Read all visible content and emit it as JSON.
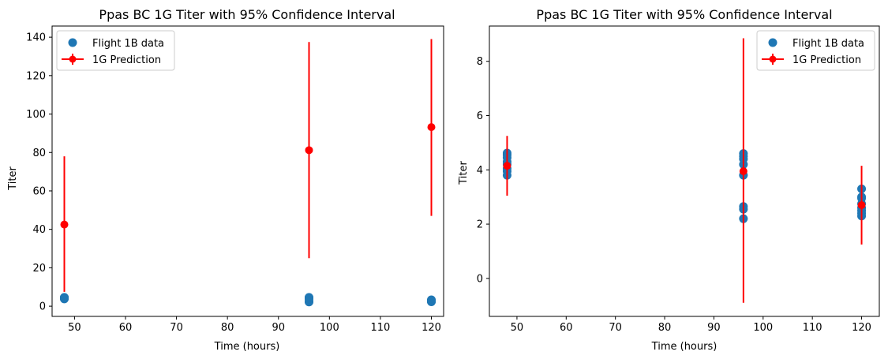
{
  "colors": {
    "data_series": "#1f77b4",
    "prediction_series": "#ff0000",
    "axes": "#000000",
    "background": "#ffffff"
  },
  "chart_data": [
    {
      "type": "scatter",
      "title": "Ppas BC 1G Titer with 95% Confidence Interval",
      "xlabel": "Time (hours)",
      "ylabel": "Titer",
      "xlim": [
        45.6,
        122.4
      ],
      "ylim": [
        -5.3,
        145.8
      ],
      "xticks": [
        50,
        60,
        70,
        80,
        90,
        100,
        110,
        120
      ],
      "yticks": [
        0,
        20,
        40,
        60,
        80,
        100,
        120,
        140
      ],
      "grid": false,
      "legend_position": "top-left",
      "series": [
        {
          "name": "Flight 1B data",
          "kind": "scatter",
          "color": "#1f77b4",
          "x": [
            48,
            48,
            48,
            48,
            48,
            48,
            96,
            96,
            96,
            96,
            96,
            96,
            120,
            120,
            120,
            120,
            120,
            120
          ],
          "y": [
            3.8,
            4.0,
            4.2,
            4.4,
            4.5,
            4.6,
            2.2,
            2.6,
            3.8,
            4.2,
            4.4,
            4.6,
            2.3,
            2.5,
            2.7,
            2.8,
            3.0,
            3.3
          ]
        },
        {
          "name": "1G Prediction",
          "kind": "errorbar",
          "color": "#ff0000",
          "x": [
            48,
            96,
            120
          ],
          "y": [
            42.5,
            81.2,
            93.2
          ],
          "lower": [
            7.5,
            25.0,
            47.0
          ],
          "upper": [
            78.0,
            137.5,
            139.0
          ]
        }
      ]
    },
    {
      "type": "scatter",
      "title": "Ppas BC 1G Titer with 95% Confidence Interval",
      "xlabel": "Time (hours)",
      "ylabel": "Titer",
      "xlim": [
        44.4,
        123.6
      ],
      "ylim": [
        -1.4,
        9.3
      ],
      "xticks": [
        50,
        60,
        70,
        80,
        90,
        100,
        110,
        120
      ],
      "yticks": [
        0,
        2,
        4,
        6,
        8
      ],
      "grid": false,
      "legend_position": "top-right",
      "series": [
        {
          "name": "Flight 1B data",
          "kind": "scatter",
          "color": "#1f77b4",
          "x": [
            48,
            48,
            48,
            48,
            48,
            48,
            48,
            48,
            96,
            96,
            96,
            96,
            96,
            96,
            96,
            96,
            120,
            120,
            120,
            120,
            120,
            120,
            120,
            120
          ],
          "y": [
            3.8,
            3.95,
            4.05,
            4.2,
            4.3,
            4.45,
            4.55,
            4.62,
            2.2,
            2.55,
            2.65,
            3.8,
            4.2,
            4.4,
            4.5,
            4.6,
            2.3,
            2.4,
            2.5,
            2.6,
            2.75,
            2.95,
            3.0,
            3.3
          ]
        },
        {
          "name": "1G Prediction",
          "kind": "errorbar",
          "color": "#ff0000",
          "x": [
            48,
            96,
            120
          ],
          "y": [
            4.15,
            3.95,
            2.7
          ],
          "lower": [
            3.05,
            -0.9,
            1.25
          ],
          "upper": [
            5.25,
            8.85,
            4.15
          ]
        }
      ]
    }
  ]
}
